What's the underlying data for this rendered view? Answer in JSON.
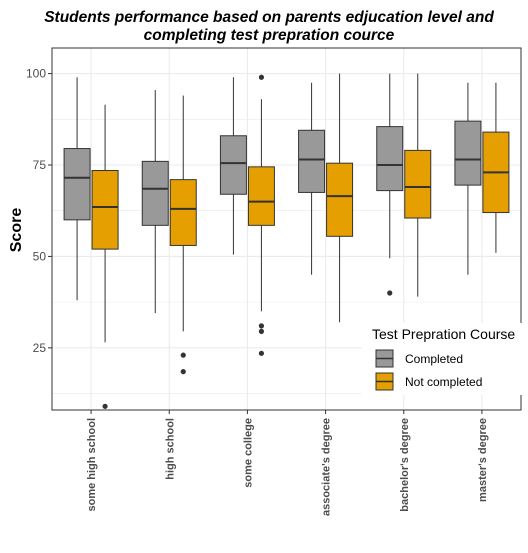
{
  "chart_data": {
    "type": "boxplot",
    "title": "Students performance based on parents edjucation level and completing test prepration cource",
    "title_lines": [
      "Students performance based on parents edjucation level and",
      "completing test prepration cource"
    ],
    "xlabel": "",
    "ylabel": "Score",
    "ylim": [
      8,
      107
    ],
    "yticks": [
      25,
      50,
      75,
      100
    ],
    "grid": true,
    "legend": {
      "title": "Test Prepration Course",
      "placement": "bottom-right inside",
      "entries": [
        "Completed",
        "Not completed"
      ]
    },
    "categories": [
      "some high school",
      "high school",
      "some college",
      "associate's degree",
      "bachelor's degree",
      "master's degree"
    ],
    "series": [
      {
        "name": "Completed",
        "color": "#999999",
        "boxes": [
          {
            "min": 38,
            "q1": 60,
            "median": 71.5,
            "q3": 79.5,
            "max": 99,
            "outliers": []
          },
          {
            "min": 34.5,
            "q1": 58.5,
            "median": 68.5,
            "q3": 76,
            "max": 95.5,
            "outliers": []
          },
          {
            "min": 50.5,
            "q1": 67,
            "median": 75.5,
            "q3": 83,
            "max": 99,
            "outliers": []
          },
          {
            "min": 45,
            "q1": 67.5,
            "median": 76.5,
            "q3": 84.5,
            "max": 97.5,
            "outliers": []
          },
          {
            "min": 49.5,
            "q1": 68,
            "median": 75,
            "q3": 85.5,
            "max": 100,
            "outliers": [
              40
            ]
          },
          {
            "min": 45,
            "q1": 69.5,
            "median": 76.5,
            "q3": 87,
            "max": 97.5,
            "outliers": []
          }
        ]
      },
      {
        "name": "Not completed",
        "color": "#E69F00",
        "boxes": [
          {
            "min": 26.5,
            "q1": 52,
            "median": 63.5,
            "q3": 73.5,
            "max": 91.5,
            "outliers": [
              9
            ]
          },
          {
            "min": 29.5,
            "q1": 53,
            "median": 63,
            "q3": 71,
            "max": 94,
            "outliers": [
              23,
              18.5
            ]
          },
          {
            "min": 35,
            "q1": 58.5,
            "median": 65,
            "q3": 74.5,
            "max": 93,
            "outliers": [
              99,
              31,
              29.5,
              23.5
            ]
          },
          {
            "min": 32,
            "q1": 55.5,
            "median": 66.5,
            "q3": 75.5,
            "max": 100,
            "outliers": []
          },
          {
            "min": 39,
            "q1": 60.5,
            "median": 69,
            "q3": 79,
            "max": 100,
            "outliers": []
          },
          {
            "min": 51,
            "q1": 62,
            "median": 73,
            "q3": 84,
            "max": 97.5,
            "outliers": []
          }
        ]
      }
    ]
  }
}
